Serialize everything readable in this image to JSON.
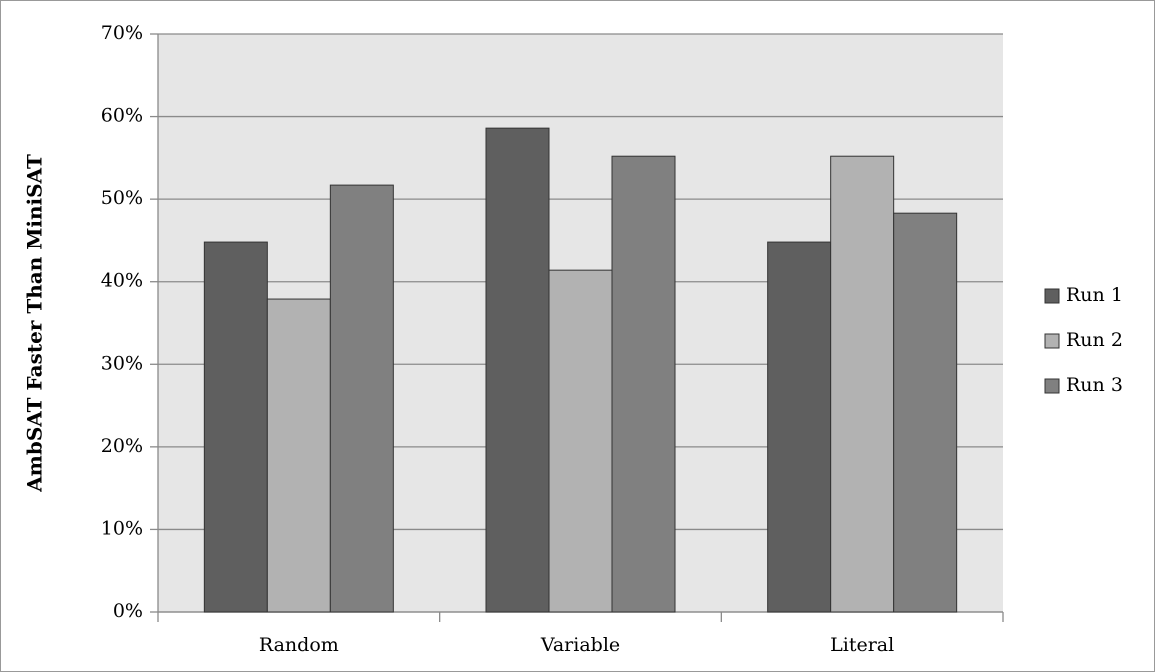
{
  "chart_data": {
    "type": "bar",
    "y_label": "AmbSAT Faster Than MiniSAT",
    "categories": [
      "Random",
      "Variable",
      "Literal"
    ],
    "series": [
      {
        "name": "Run 1",
        "color": "#5f5f5f",
        "values": [
          44.8,
          58.6,
          44.8
        ]
      },
      {
        "name": "Run 2",
        "color": "#b2b2b2",
        "values": [
          37.9,
          41.4,
          55.2
        ]
      },
      {
        "name": "Run 3",
        "color": "#808080",
        "values": [
          51.7,
          55.2,
          48.3
        ]
      }
    ],
    "ylim": [
      0,
      70
    ],
    "yticks": [
      {
        "value": 0,
        "label": "0%"
      },
      {
        "value": 10,
        "label": "10%"
      },
      {
        "value": 20,
        "label": "20%"
      },
      {
        "value": 30,
        "label": "30%"
      },
      {
        "value": 40,
        "label": "40%"
      },
      {
        "value": 50,
        "label": "50%"
      },
      {
        "value": 60,
        "label": "60%"
      },
      {
        "value": 70,
        "label": "70%"
      }
    ],
    "grid": true,
    "legend": "right"
  }
}
